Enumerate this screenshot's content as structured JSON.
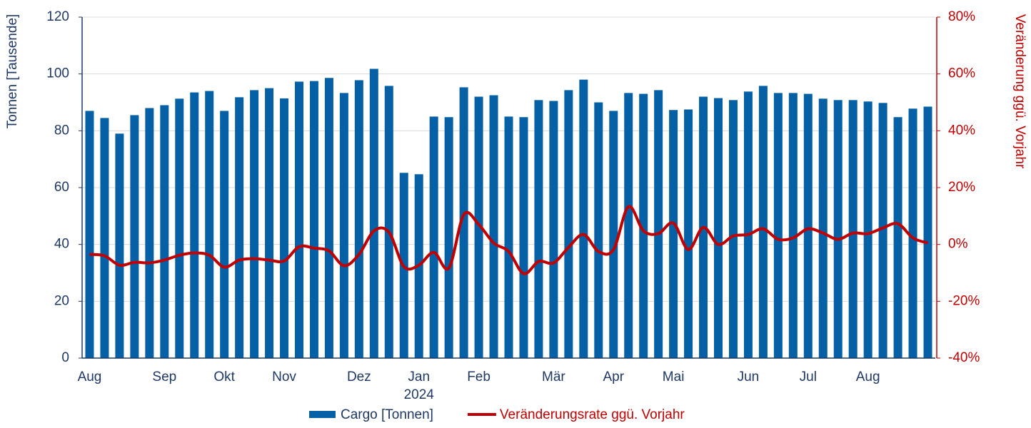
{
  "chart_data": {
    "type": "bar_line",
    "y_label": "Tonnen [Tausende]",
    "y2_label": "Veränderung ggü. Vorjahr",
    "categories": [
      "Aug",
      null,
      null,
      null,
      null,
      "Sep",
      null,
      null,
      null,
      "Okt",
      null,
      null,
      null,
      "Nov",
      null,
      null,
      null,
      null,
      "Dez",
      null,
      null,
      null,
      "Jan",
      null,
      null,
      null,
      "Feb",
      null,
      null,
      null,
      null,
      "Mär",
      null,
      null,
      null,
      "Apr",
      null,
      null,
      null,
      "Mai",
      null,
      null,
      null,
      null,
      "Jun",
      null,
      null,
      null,
      "Jul",
      null,
      null,
      null,
      "Aug",
      null,
      null,
      null,
      null
    ],
    "year_label": "2024",
    "series": [
      {
        "name": "Cargo [Tonnen]",
        "color": "#0560a6",
        "kind": "bar",
        "values": [
          87,
          84.5,
          79,
          85.5,
          88,
          89,
          91.3,
          93.5,
          94,
          87,
          91.8,
          94.3,
          95,
          91.4,
          97.3,
          97.5,
          98.6,
          93.3,
          97.8,
          101.8,
          95.8,
          65.2,
          64.7,
          85,
          84.8,
          95.3,
          92,
          92.5,
          85,
          84.8,
          90.8,
          90.5,
          94.3,
          98,
          90,
          87,
          93.3,
          93,
          94.3,
          87.3,
          87.5,
          92,
          91.5,
          90.8,
          93.8,
          95.8,
          93.3,
          93.3,
          93,
          91.3,
          90.8,
          90.8,
          90.3,
          89.8,
          84.8,
          87.8,
          88.5
        ]
      },
      {
        "name": "Veränderungsrate ggü. Vorjahr",
        "color": "#c00000",
        "kind": "line",
        "axis": "y2",
        "values": [
          -3.5,
          -4,
          -7.3,
          -6.3,
          -6.5,
          -5.5,
          -3.8,
          -3,
          -3.8,
          -8,
          -5.5,
          -5,
          -5.5,
          -5.8,
          -0.8,
          -1.3,
          -2.3,
          -7.5,
          -3.5,
          4.8,
          4.3,
          -7.8,
          -7.3,
          -2.8,
          -8.3,
          10.5,
          7,
          0.5,
          -2.5,
          -10.3,
          -6,
          -6.5,
          -1,
          3.5,
          -2.5,
          -1.8,
          13.3,
          4.8,
          3.8,
          7.5,
          -1.8,
          6,
          0,
          3,
          3.5,
          5.5,
          1.8,
          2.3,
          5.5,
          4,
          1.8,
          4,
          3.8,
          5.8,
          7.3,
          2.3,
          0.5
        ]
      }
    ],
    "ylim": [
      0,
      120
    ],
    "yticks": [
      0,
      20,
      40,
      60,
      80,
      100,
      120
    ],
    "y2lim": [
      -40,
      80
    ],
    "y2ticks": [
      {
        "value": -40,
        "label": "-40%"
      },
      {
        "value": -20,
        "label": "-20%"
      },
      {
        "value": 0,
        "label": "0%"
      },
      {
        "value": 20,
        "label": "20%"
      },
      {
        "value": 40,
        "label": "40%"
      },
      {
        "value": 60,
        "label": "60%"
      },
      {
        "value": 80,
        "label": "80%"
      }
    ],
    "grid": true,
    "legend": "bottom"
  }
}
